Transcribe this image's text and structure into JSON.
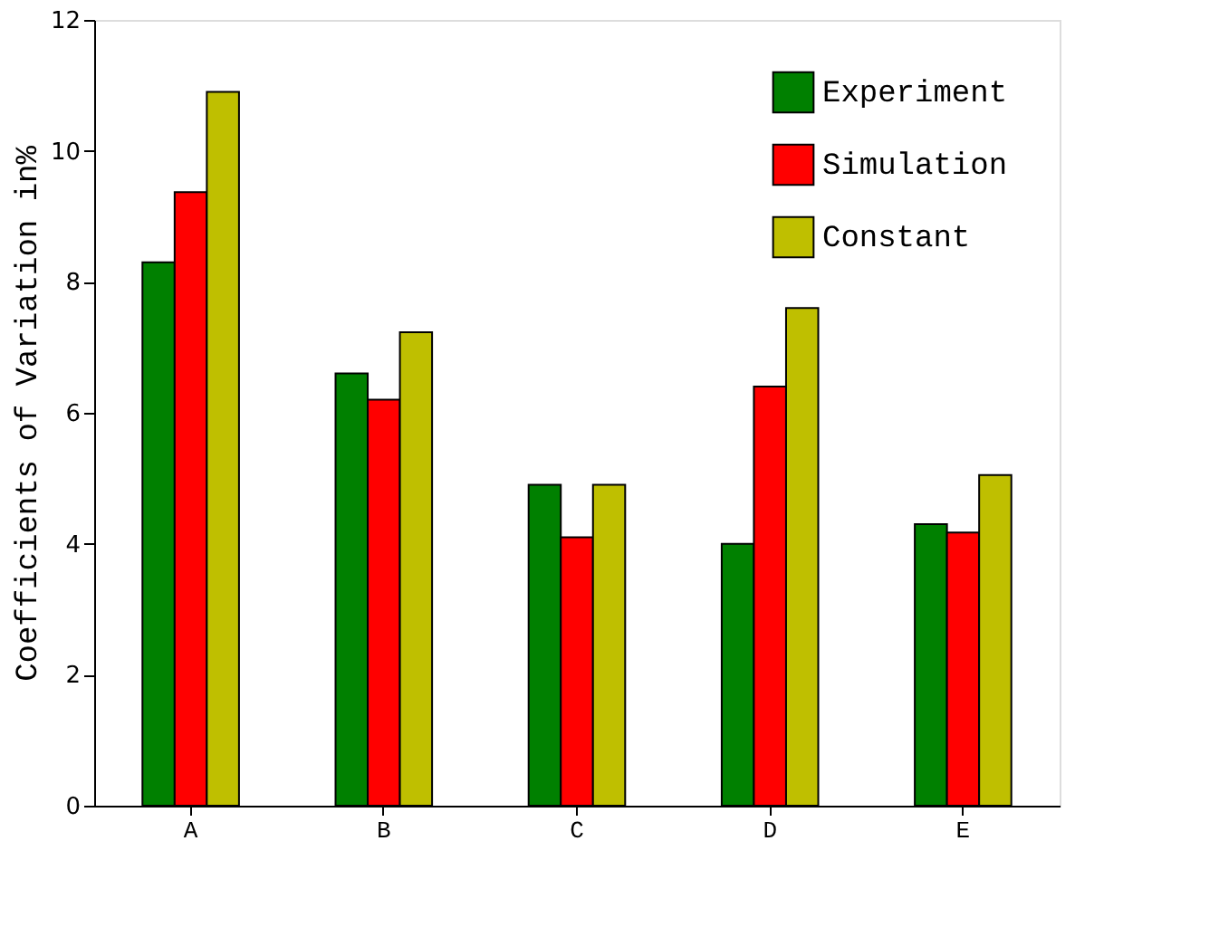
{
  "chart_data": {
    "type": "bar",
    "ylabel": "Coefficients of Variation in%",
    "categories": [
      "A",
      "B",
      "C",
      "D",
      "E"
    ],
    "series": [
      {
        "name": "Experiment",
        "color": "#008000",
        "values": [
          8.3,
          6.6,
          4.9,
          4.0,
          4.3
        ]
      },
      {
        "name": "Simulation",
        "color": "#ff0000",
        "values": [
          9.37,
          6.2,
          4.1,
          6.4,
          4.17
        ]
      },
      {
        "name": "Constant",
        "color": "#bfbf00",
        "values": [
          10.9,
          7.23,
          4.9,
          7.6,
          5.05
        ]
      }
    ],
    "ylim": [
      0,
      12
    ],
    "yticks": [
      0,
      2,
      4,
      6,
      8,
      10,
      12
    ],
    "grid": false,
    "legend": "top right"
  }
}
